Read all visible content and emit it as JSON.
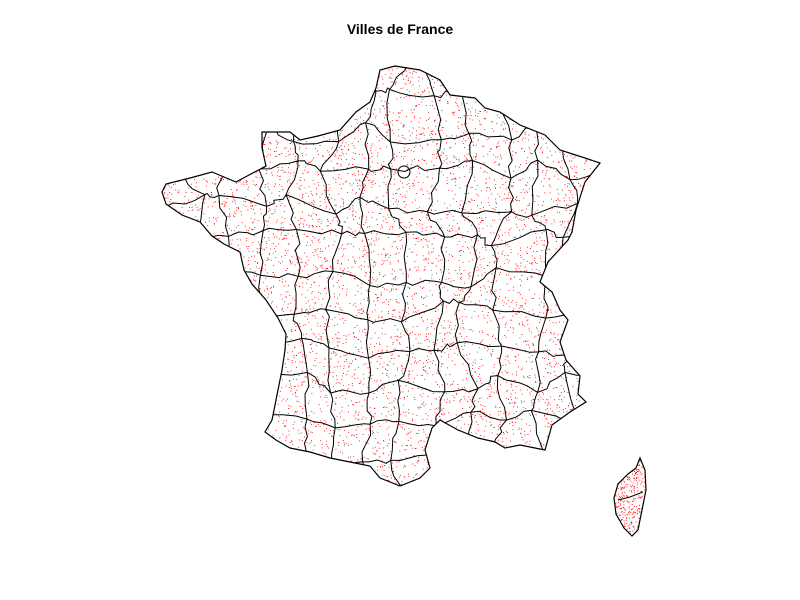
{
  "map": {
    "title": "Villes de France",
    "colors": {
      "background": "#ffffff",
      "boundary": "#000000",
      "cities": "#ff0000"
    },
    "regions": [
      "mainland-france",
      "corsica"
    ]
  }
}
